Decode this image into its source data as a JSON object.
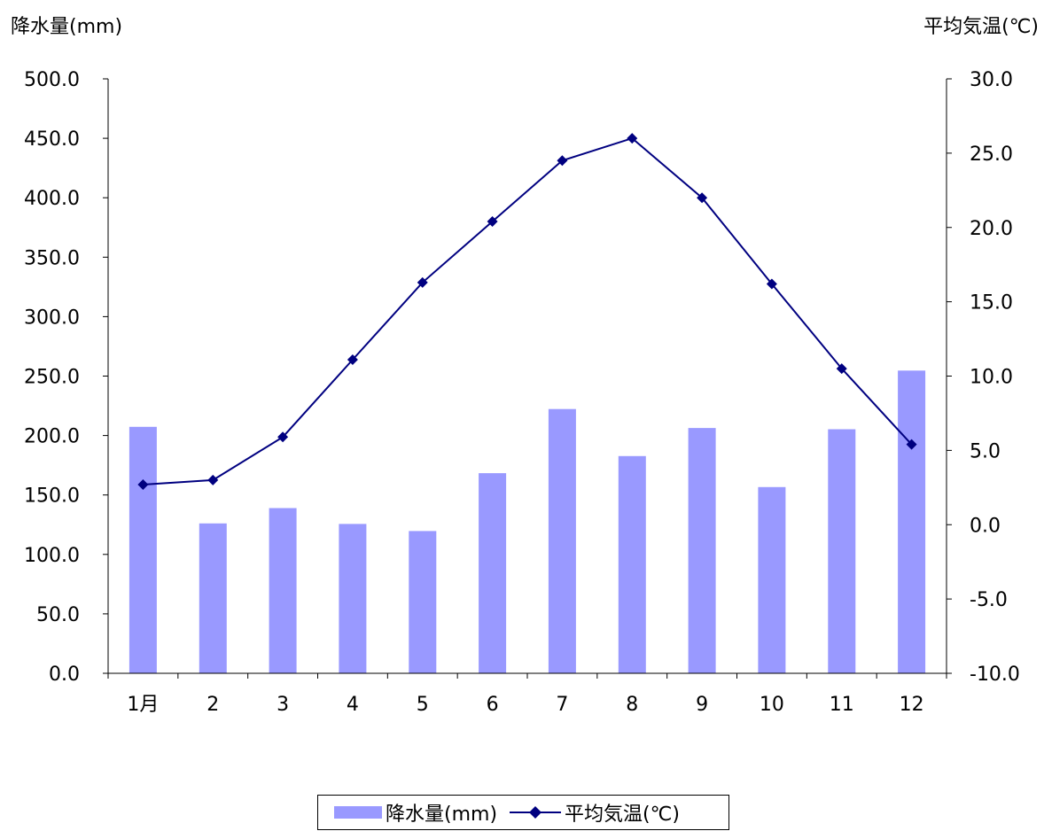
{
  "axis_titles": {
    "left": "降水量(mm)",
    "right": "平均気温(℃)"
  },
  "legend": {
    "bar_label": "降水量(mm)",
    "line_label": "平均気温(℃)"
  },
  "colors": {
    "bar": "#9999FF",
    "line": "#000080",
    "axis": "#000000"
  },
  "chart_data": {
    "type": "bar",
    "combo": "bar+line",
    "categories": [
      "1月",
      "2",
      "3",
      "4",
      "5",
      "6",
      "7",
      "8",
      "9",
      "10",
      "11",
      "12"
    ],
    "series": [
      {
        "name": "降水量(mm)",
        "type": "bar",
        "axis": "left",
        "values": [
          207.3,
          126.1,
          139.0,
          125.6,
          119.7,
          168.3,
          222.3,
          182.7,
          206.3,
          156.6,
          205.3,
          254.6
        ]
      },
      {
        "name": "平均気温(℃)",
        "type": "line",
        "axis": "right",
        "marker": "diamond",
        "values": [
          2.7,
          3.0,
          5.9,
          11.1,
          16.3,
          20.4,
          24.5,
          26.0,
          22.0,
          16.2,
          10.5,
          5.4
        ]
      }
    ],
    "y_left": {
      "label": "降水量(mm)",
      "min": 0,
      "max": 500,
      "step": 50,
      "ticks": [
        "0.0",
        "50.0",
        "100.0",
        "150.0",
        "200.0",
        "250.0",
        "300.0",
        "350.0",
        "400.0",
        "450.0",
        "500.0"
      ]
    },
    "y_right": {
      "label": "平均気温(℃)",
      "min": -10,
      "max": 30,
      "step": 5,
      "ticks": [
        "-10.0",
        "-5.0",
        "0.0",
        "5.0",
        "10.0",
        "15.0",
        "20.0",
        "25.0",
        "30.0"
      ]
    },
    "grid": false,
    "legend_position": "bottom"
  }
}
